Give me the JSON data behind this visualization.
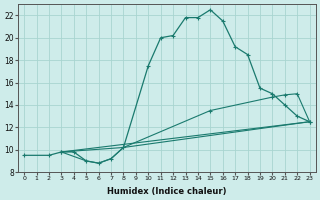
{
  "xlabel": "Humidex (Indice chaleur)",
  "xlim": [
    -0.5,
    23.5
  ],
  "ylim": [
    8,
    23
  ],
  "yticks": [
    8,
    10,
    12,
    14,
    16,
    18,
    20,
    22
  ],
  "xticks": [
    0,
    1,
    2,
    3,
    4,
    5,
    6,
    7,
    8,
    9,
    10,
    11,
    12,
    13,
    14,
    15,
    16,
    17,
    18,
    19,
    20,
    21,
    22,
    23
  ],
  "bg_color": "#ceecea",
  "grid_color": "#a8d5d0",
  "line_color": "#1a7a6e",
  "series": [
    {
      "x": [
        0,
        2,
        3,
        4,
        5,
        6,
        7,
        8,
        10,
        11,
        12,
        13,
        14,
        15,
        16,
        17,
        18,
        19,
        20,
        21,
        22,
        23
      ],
      "y": [
        9.5,
        9.5,
        9.8,
        9.8,
        9.0,
        8.8,
        9.2,
        10.2,
        17.5,
        20.0,
        20.2,
        21.8,
        21.8,
        22.5,
        21.5,
        19.2,
        18.5,
        15.5,
        15.0,
        14.0,
        13.0,
        12.5
      ]
    },
    {
      "x": [
        3,
        5,
        6,
        7,
        8,
        23
      ],
      "y": [
        9.8,
        9.0,
        8.8,
        9.2,
        10.2,
        12.5
      ]
    },
    {
      "x": [
        3,
        23
      ],
      "y": [
        9.8,
        12.5
      ]
    },
    {
      "x": [
        3,
        8,
        15,
        20,
        21,
        22,
        23
      ],
      "y": [
        9.8,
        10.2,
        13.5,
        14.7,
        14.9,
        15.0,
        12.5
      ]
    }
  ]
}
